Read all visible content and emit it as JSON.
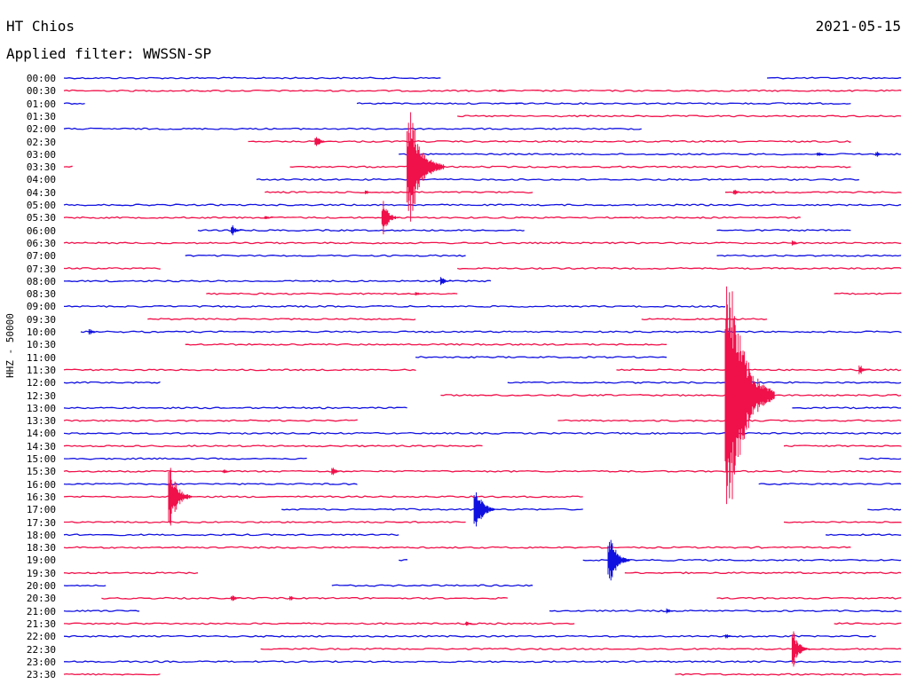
{
  "header": {
    "station": "HT Chios",
    "date": "2021-05-15",
    "filter_label": "Applied filter: WWSSN-SP"
  },
  "axis_label": "HHZ - 50000",
  "colors": {
    "blue": "#1010e0",
    "red": "#f0104a"
  },
  "chart_data": {
    "type": "helicorder",
    "title": "HT Chios",
    "ylabel": "HHZ - 50000",
    "row_labels": [
      "00:00",
      "00:30",
      "01:00",
      "01:30",
      "02:00",
      "02:30",
      "03:00",
      "03:30",
      "04:00",
      "04:30",
      "05:00",
      "05:30",
      "06:00",
      "06:30",
      "07:00",
      "07:30",
      "08:00",
      "08:30",
      "09:00",
      "09:30",
      "10:00",
      "10:30",
      "11:00",
      "11:30",
      "12:00",
      "12:30",
      "13:00",
      "13:30",
      "14:00",
      "14:30",
      "15:00",
      "15:30",
      "16:00",
      "16:30",
      "17:00",
      "17:30",
      "18:00",
      "18:30",
      "19:00",
      "19:30",
      "20:00",
      "20:30",
      "21:00",
      "21:30",
      "22:00",
      "22:30",
      "23:00",
      "23:30"
    ],
    "row_colors": [
      "blue",
      "red"
    ],
    "minutes_per_row": 30,
    "segments": [
      [
        [
          0.0,
          0.45
        ],
        [
          0.84,
          1.0
        ]
      ],
      [
        [
          0.0,
          1.0
        ]
      ],
      [
        [
          0.0,
          0.025
        ],
        [
          0.35,
          0.94
        ]
      ],
      [
        [
          0.47,
          1.0
        ]
      ],
      [
        [
          0.0,
          0.69
        ]
      ],
      [
        [
          0.22,
          0.94
        ]
      ],
      [
        [
          0.4,
          1.0
        ]
      ],
      [
        [
          0.0,
          0.01
        ],
        [
          0.27,
          0.94
        ]
      ],
      [
        [
          0.23,
          0.95
        ]
      ],
      [
        [
          0.24,
          0.56
        ],
        [
          0.79,
          1.0
        ]
      ],
      [
        [
          0.0,
          1.0
        ]
      ],
      [
        [
          0.0,
          0.88
        ]
      ],
      [
        [
          0.16,
          0.55
        ],
        [
          0.78,
          0.94
        ]
      ],
      [
        [
          0.0,
          1.0
        ]
      ],
      [
        [
          0.145,
          0.48
        ],
        [
          0.78,
          1.0
        ]
      ],
      [
        [
          0.0,
          0.115
        ],
        [
          0.47,
          1.0
        ]
      ],
      [
        [
          0.0,
          0.51
        ]
      ],
      [
        [
          0.17,
          0.47
        ],
        [
          0.92,
          1.0
        ]
      ],
      [
        [
          0.0,
          0.79
        ]
      ],
      [
        [
          0.1,
          0.42
        ],
        [
          0.69,
          0.84
        ]
      ],
      [
        [
          0.02,
          1.0
        ]
      ],
      [
        [
          0.145,
          0.72
        ]
      ],
      [
        [
          0.42,
          0.72
        ]
      ],
      [
        [
          0.0,
          0.42
        ],
        [
          0.66,
          1.0
        ]
      ],
      [
        [
          0.0,
          0.115
        ],
        [
          0.53,
          1.0
        ]
      ],
      [
        [
          0.45,
          1.0
        ]
      ],
      [
        [
          0.0,
          0.41
        ],
        [
          0.87,
          1.0
        ]
      ],
      [
        [
          0.0,
          0.35
        ],
        [
          0.59,
          1.0
        ]
      ],
      [
        [
          0.0,
          1.0
        ]
      ],
      [
        [
          0.0,
          0.5
        ],
        [
          0.86,
          1.0
        ]
      ],
      [
        [
          0.0,
          0.29
        ],
        [
          0.95,
          1.0
        ]
      ],
      [
        [
          0.0,
          1.0
        ]
      ],
      [
        [
          0.0,
          0.35
        ],
        [
          0.83,
          1.0
        ]
      ],
      [
        [
          0.0,
          0.62
        ]
      ],
      [
        [
          0.26,
          0.62
        ],
        [
          0.96,
          1.0
        ]
      ],
      [
        [
          0.0,
          0.48
        ],
        [
          0.86,
          1.0
        ]
      ],
      [
        [
          0.0,
          0.4
        ],
        [
          0.91,
          1.0
        ]
      ],
      [
        [
          0.0,
          0.94
        ]
      ],
      [
        [
          0.4,
          0.41
        ],
        [
          0.62,
          1.0
        ]
      ],
      [
        [
          0.0,
          0.16
        ],
        [
          0.67,
          1.0
        ]
      ],
      [
        [
          0.0,
          0.05
        ],
        [
          0.32,
          0.56
        ]
      ],
      [
        [
          0.045,
          0.53
        ],
        [
          0.78,
          1.0
        ]
      ],
      [
        [
          0.0,
          0.09
        ],
        [
          0.58,
          1.0
        ]
      ],
      [
        [
          0.0,
          0.61
        ],
        [
          0.92,
          1.0
        ]
      ],
      [
        [
          0.0,
          0.97
        ]
      ],
      [
        [
          0.235,
          1.0
        ]
      ],
      [
        [
          0.0,
          1.0
        ]
      ],
      [
        [
          0.0,
          0.115
        ],
        [
          0.73,
          1.0
        ]
      ]
    ],
    "events": [
      [
        1,
        0.52,
        3
      ],
      [
        2,
        0.54,
        2
      ],
      [
        5,
        0.3,
        12
      ],
      [
        6,
        0.9,
        5
      ],
      [
        6,
        0.97,
        5
      ],
      [
        7,
        0.41,
        90
      ],
      [
        9,
        0.36,
        4
      ],
      [
        9,
        0.8,
        5
      ],
      [
        11,
        0.24,
        5
      ],
      [
        11,
        0.38,
        28
      ],
      [
        12,
        0.2,
        10
      ],
      [
        13,
        0.87,
        5
      ],
      [
        16,
        0.45,
        8
      ],
      [
        17,
        0.42,
        4
      ],
      [
        20,
        0.03,
        6
      ],
      [
        23,
        0.95,
        9
      ],
      [
        25,
        0.79,
        200
      ],
      [
        33,
        0.125,
        48
      ],
      [
        31,
        0.19,
        5
      ],
      [
        31,
        0.32,
        8
      ],
      [
        34,
        0.49,
        40
      ],
      [
        38,
        0.65,
        42
      ],
      [
        41,
        0.2,
        6
      ],
      [
        41,
        0.27,
        4
      ],
      [
        42,
        0.72,
        5
      ],
      [
        43,
        0.48,
        5
      ],
      [
        44,
        0.79,
        5
      ],
      [
        45,
        0.87,
        28
      ]
    ]
  }
}
